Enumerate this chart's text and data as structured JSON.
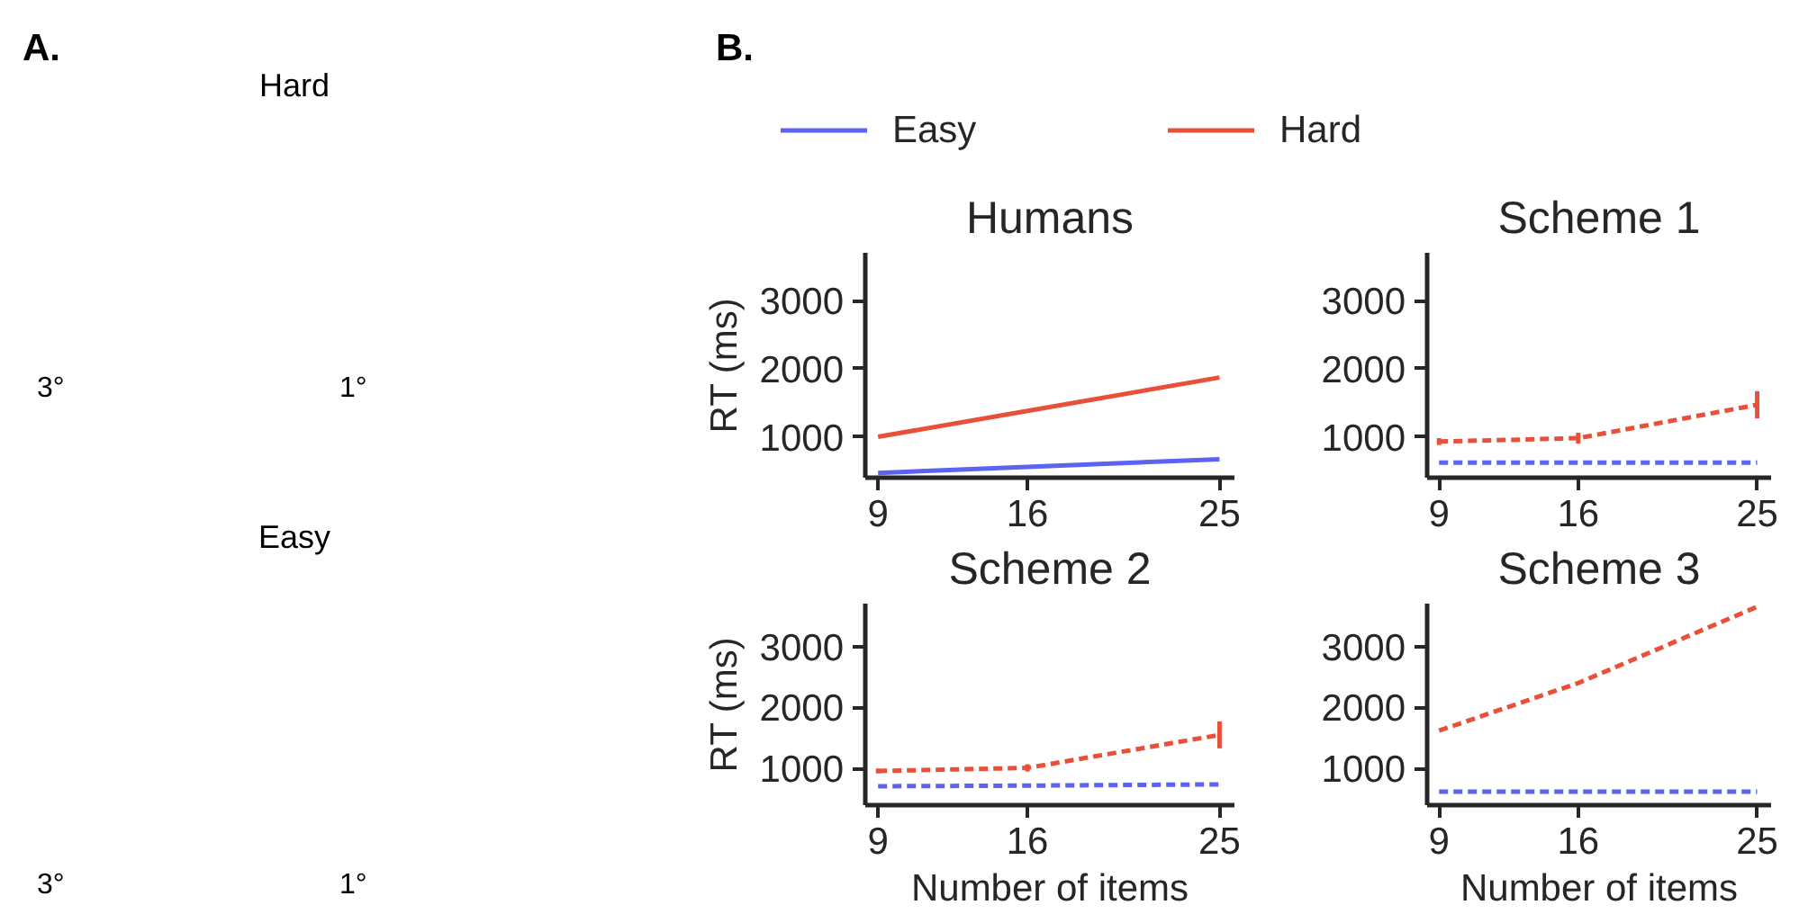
{
  "chart_data": [
    {
      "type": "other",
      "title": "A.",
      "annotations": [
        "Hard",
        "3°",
        "1°",
        "Easy",
        "3°",
        "1°"
      ]
    },
    {
      "type": "other",
      "title": "B."
    },
    {
      "type": "line",
      "title": "Humans",
      "ylabel": "RT (ms)",
      "x": [
        9,
        16,
        25
      ],
      "xlim": [
        8.4,
        25.7
      ],
      "xticks": [
        9,
        16,
        25
      ],
      "ylim": [
        400,
        3700
      ],
      "yticks": [
        1000,
        2000,
        3000
      ],
      "grid": false,
      "legend": "top",
      "line_style": "solid",
      "marker": "none",
      "series": [
        {
          "name": "Easy",
          "color": "#5b63f0",
          "values": [
            470,
            560,
            670
          ]
        },
        {
          "name": "Hard",
          "color": "#e8503a",
          "values": [
            1000,
            1380,
            1870
          ]
        }
      ]
    },
    {
      "type": "line",
      "title": "Scheme 1",
      "x": [
        9,
        16,
        25
      ],
      "xlim": [
        8.4,
        25.7
      ],
      "xticks": [
        9,
        16,
        25
      ],
      "ylim": [
        400,
        3700
      ],
      "yticks": [
        1000,
        2000,
        3000
      ],
      "grid": false,
      "line_style": "dashed",
      "marker": "none",
      "series": [
        {
          "color": "#5b63f0",
          "values": [
            620,
            620,
            620
          ]
        },
        {
          "color": "#e8503a",
          "values": [
            930,
            980,
            1470
          ],
          "errors": [
            50,
            80,
            200
          ]
        }
      ]
    },
    {
      "type": "line",
      "title": "Scheme 2",
      "ylabel": "RT (ms)",
      "xlabel": "Number of items",
      "x": [
        9,
        16,
        25
      ],
      "xlim": [
        8.4,
        25.7
      ],
      "xticks": [
        9,
        16,
        25
      ],
      "ylim": [
        400,
        3700
      ],
      "yticks": [
        1000,
        2000,
        3000
      ],
      "grid": false,
      "line_style": "dashed",
      "marker": "none",
      "series": [
        {
          "color": "#5b63f0",
          "values": [
            710,
            720,
            740
          ]
        },
        {
          "color": "#e8503a",
          "values": [
            960,
            1010,
            1550
          ],
          "errors": [
            40,
            60,
            220
          ]
        }
      ]
    },
    {
      "type": "line",
      "title": "Scheme 3",
      "xlabel": "Number of items",
      "x": [
        9,
        16,
        25
      ],
      "xlim": [
        8.4,
        25.7
      ],
      "xticks": [
        9,
        16,
        25
      ],
      "ylim": [
        400,
        3700
      ],
      "yticks": [
        1000,
        2000,
        3000
      ],
      "grid": false,
      "line_style": "dashed",
      "marker": "none",
      "series": [
        {
          "color": "#5b63f0",
          "values": [
            620,
            620,
            620
          ]
        },
        {
          "color": "#e8503a",
          "values": [
            1620,
            2400,
            3650
          ]
        }
      ]
    }
  ]
}
